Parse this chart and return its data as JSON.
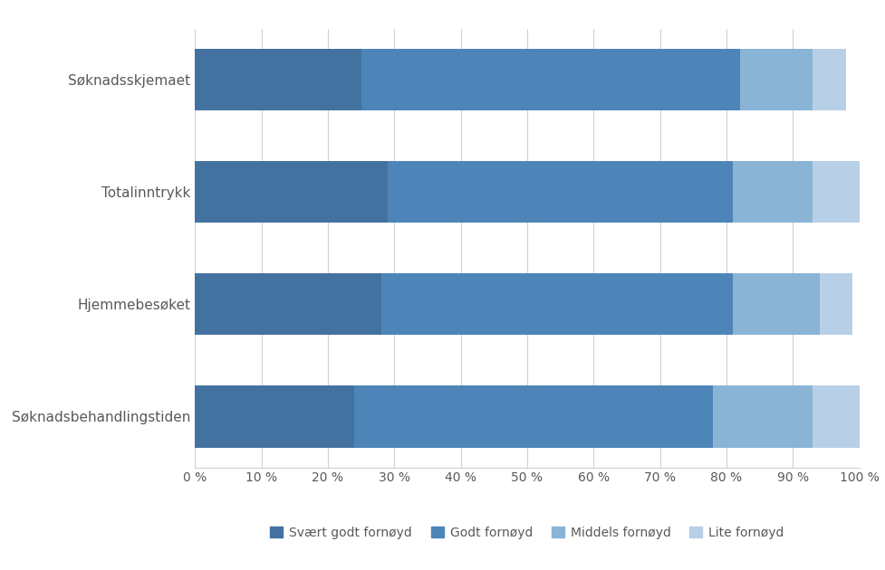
{
  "categories": [
    "Søknadsskjemaet",
    "Totalinntrykk",
    "Hjemmebesøket",
    "Søknadsbehandlingstiden"
  ],
  "series": [
    {
      "label": "Svært godt fornøyd",
      "color": "#4472a0",
      "values": [
        25,
        29,
        28,
        24
      ]
    },
    {
      "label": "Godt fornøyd",
      "color": "#4d85b8",
      "values": [
        57,
        52,
        53,
        54
      ]
    },
    {
      "label": "Middels fornøyd",
      "color": "#89b4d6",
      "values": [
        11,
        12,
        13,
        15
      ]
    },
    {
      "label": "Lite fornøyd",
      "color": "#b8cfe8",
      "values": [
        5,
        7,
        5,
        7
      ]
    }
  ],
  "xlim": [
    0,
    100
  ],
  "xticks": [
    0,
    10,
    20,
    30,
    40,
    50,
    60,
    70,
    80,
    90,
    100
  ],
  "background_color": "#ffffff",
  "grid_color": "#d0d0d0",
  "label_color": "#595959",
  "tick_label_color": "#595959",
  "bar_height": 0.55,
  "figsize": [
    9.78,
    6.3
  ],
  "dpi": 100,
  "legend_fontsize": 10,
  "ytick_fontsize": 11,
  "xtick_fontsize": 10
}
